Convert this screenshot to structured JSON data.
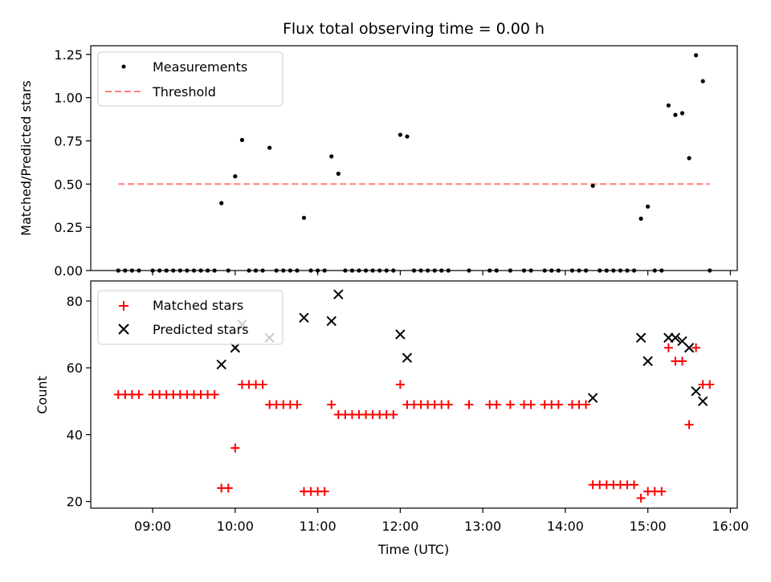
{
  "figure": {
    "title": "Flux total observing time = 0.00 h"
  },
  "chart_data": [
    {
      "type": "scatter",
      "panel": "top",
      "title": "Flux total observing time = 0.00 h",
      "xlabel": "",
      "ylabel": "Matched/Predicted stars",
      "xlim": [
        "08:15",
        "16:05"
      ],
      "ylim": [
        0,
        1.3
      ],
      "y_ticks": [
        "0.00",
        "0.25",
        "0.50",
        "0.75",
        "1.00",
        "1.25"
      ],
      "x_tick_times": [
        "09:00",
        "10:00",
        "11:00",
        "12:00",
        "13:00",
        "14:00",
        "15:00",
        "16:00"
      ],
      "legend_position": "top-left",
      "colors": {
        "measurements": "#000000",
        "threshold": "#ff7f7f"
      },
      "series": [
        {
          "name": "Measurements",
          "style": "dot",
          "points": [
            [
              "08:35",
              0
            ],
            [
              "08:40",
              0
            ],
            [
              "08:45",
              0
            ],
            [
              "08:50",
              0
            ],
            [
              "09:00",
              0
            ],
            [
              "09:05",
              0
            ],
            [
              "09:10",
              0
            ],
            [
              "09:15",
              0
            ],
            [
              "09:20",
              0
            ],
            [
              "09:25",
              0
            ],
            [
              "09:30",
              0
            ],
            [
              "09:35",
              0
            ],
            [
              "09:40",
              0
            ],
            [
              "09:45",
              0
            ],
            [
              "09:50",
              0.39
            ],
            [
              "09:55",
              0
            ],
            [
              "10:00",
              0.545
            ],
            [
              "10:05",
              0.755
            ],
            [
              "10:10",
              0
            ],
            [
              "10:15",
              0
            ],
            [
              "10:20",
              0
            ],
            [
              "10:25",
              0.71
            ],
            [
              "10:30",
              0
            ],
            [
              "10:35",
              0
            ],
            [
              "10:40",
              0
            ],
            [
              "10:45",
              0
            ],
            [
              "10:50",
              0.305
            ],
            [
              "10:55",
              0
            ],
            [
              "11:00",
              0
            ],
            [
              "11:05",
              0
            ],
            [
              "11:10",
              0.66
            ],
            [
              "11:15",
              0.56
            ],
            [
              "11:20",
              0
            ],
            [
              "11:25",
              0
            ],
            [
              "11:30",
              0
            ],
            [
              "11:35",
              0
            ],
            [
              "11:40",
              0
            ],
            [
              "11:45",
              0
            ],
            [
              "11:50",
              0
            ],
            [
              "11:55",
              0
            ],
            [
              "12:00",
              0.785
            ],
            [
              "12:05",
              0.775
            ],
            [
              "12:10",
              0
            ],
            [
              "12:15",
              0
            ],
            [
              "12:20",
              0
            ],
            [
              "12:25",
              0
            ],
            [
              "12:30",
              0
            ],
            [
              "12:35",
              0
            ],
            [
              "12:50",
              0
            ],
            [
              "13:05",
              0
            ],
            [
              "13:10",
              0
            ],
            [
              "13:20",
              0
            ],
            [
              "13:30",
              0
            ],
            [
              "13:35",
              0
            ],
            [
              "13:45",
              0
            ],
            [
              "13:50",
              0
            ],
            [
              "13:55",
              0
            ],
            [
              "14:05",
              0
            ],
            [
              "14:10",
              0
            ],
            [
              "14:15",
              0
            ],
            [
              "14:20",
              0.49
            ],
            [
              "14:25",
              0
            ],
            [
              "14:30",
              0
            ],
            [
              "14:35",
              0
            ],
            [
              "14:40",
              0
            ],
            [
              "14:45",
              0
            ],
            [
              "14:50",
              0
            ],
            [
              "14:55",
              0.3
            ],
            [
              "15:00",
              0.37
            ],
            [
              "15:05",
              0
            ],
            [
              "15:10",
              0
            ],
            [
              "15:15",
              0.955
            ],
            [
              "15:20",
              0.9
            ],
            [
              "15:25",
              0.91
            ],
            [
              "15:30",
              0.65
            ],
            [
              "15:35",
              1.245
            ],
            [
              "15:40",
              1.095
            ],
            [
              "15:45",
              0
            ]
          ]
        },
        {
          "name": "Threshold",
          "style": "dashed-line",
          "points": [
            [
              "08:35",
              0.5
            ],
            [
              "15:45",
              0.5
            ]
          ]
        }
      ]
    },
    {
      "type": "scatter",
      "panel": "bottom",
      "title": "",
      "xlabel": "Time (UTC)",
      "ylabel": "Count",
      "xlim": [
        "08:15",
        "16:05"
      ],
      "ylim": [
        18,
        86
      ],
      "y_ticks": [
        "20",
        "40",
        "60",
        "80"
      ],
      "x_ticks": [
        "09:00",
        "10:00",
        "11:00",
        "12:00",
        "13:00",
        "14:00",
        "15:00",
        "16:00"
      ],
      "legend_position": "top-left",
      "colors": {
        "matched": "#ff0000",
        "predicted": "#000000"
      },
      "series": [
        {
          "name": "Matched stars",
          "marker": "plus",
          "points": [
            [
              "08:35",
              52
            ],
            [
              "08:40",
              52
            ],
            [
              "08:45",
              52
            ],
            [
              "08:50",
              52
            ],
            [
              "09:00",
              52
            ],
            [
              "09:05",
              52
            ],
            [
              "09:10",
              52
            ],
            [
              "09:15",
              52
            ],
            [
              "09:20",
              52
            ],
            [
              "09:25",
              52
            ],
            [
              "09:30",
              52
            ],
            [
              "09:35",
              52
            ],
            [
              "09:40",
              52
            ],
            [
              "09:45",
              52
            ],
            [
              "09:50",
              24
            ],
            [
              "09:55",
              24
            ],
            [
              "10:00",
              36
            ],
            [
              "10:05",
              55
            ],
            [
              "10:10",
              55
            ],
            [
              "10:15",
              55
            ],
            [
              "10:20",
              55
            ],
            [
              "10:25",
              49
            ],
            [
              "10:30",
              49
            ],
            [
              "10:35",
              49
            ],
            [
              "10:40",
              49
            ],
            [
              "10:45",
              49
            ],
            [
              "10:50",
              23
            ],
            [
              "10:55",
              23
            ],
            [
              "11:00",
              23
            ],
            [
              "11:05",
              23
            ],
            [
              "11:10",
              49
            ],
            [
              "11:15",
              46
            ],
            [
              "11:20",
              46
            ],
            [
              "11:25",
              46
            ],
            [
              "11:30",
              46
            ],
            [
              "11:35",
              46
            ],
            [
              "11:40",
              46
            ],
            [
              "11:45",
              46
            ],
            [
              "11:50",
              46
            ],
            [
              "11:55",
              46
            ],
            [
              "12:00",
              55
            ],
            [
              "12:05",
              49
            ],
            [
              "12:10",
              49
            ],
            [
              "12:15",
              49
            ],
            [
              "12:20",
              49
            ],
            [
              "12:25",
              49
            ],
            [
              "12:30",
              49
            ],
            [
              "12:35",
              49
            ],
            [
              "12:50",
              49
            ],
            [
              "13:05",
              49
            ],
            [
              "13:10",
              49
            ],
            [
              "13:20",
              49
            ],
            [
              "13:30",
              49
            ],
            [
              "13:35",
              49
            ],
            [
              "13:45",
              49
            ],
            [
              "13:50",
              49
            ],
            [
              "13:55",
              49
            ],
            [
              "14:05",
              49
            ],
            [
              "14:10",
              49
            ],
            [
              "14:15",
              49
            ],
            [
              "14:20",
              25
            ],
            [
              "14:25",
              25
            ],
            [
              "14:30",
              25
            ],
            [
              "14:35",
              25
            ],
            [
              "14:40",
              25
            ],
            [
              "14:45",
              25
            ],
            [
              "14:50",
              25
            ],
            [
              "14:55",
              21
            ],
            [
              "15:00",
              23
            ],
            [
              "15:05",
              23
            ],
            [
              "15:10",
              23
            ],
            [
              "15:15",
              66
            ],
            [
              "15:20",
              62
            ],
            [
              "15:25",
              62
            ],
            [
              "15:30",
              43
            ],
            [
              "15:35",
              66
            ],
            [
              "15:40",
              55
            ],
            [
              "15:45",
              55
            ]
          ]
        },
        {
          "name": "Predicted stars",
          "marker": "x",
          "points": [
            [
              "09:50",
              61
            ],
            [
              "10:00",
              66
            ],
            [
              "10:05",
              73
            ],
            [
              "10:25",
              69
            ],
            [
              "10:50",
              75
            ],
            [
              "11:10",
              74
            ],
            [
              "11:15",
              82
            ],
            [
              "12:00",
              70
            ],
            [
              "12:05",
              63
            ],
            [
              "14:20",
              51
            ],
            [
              "14:55",
              69
            ],
            [
              "15:00",
              62
            ],
            [
              "15:15",
              69
            ],
            [
              "15:20",
              69
            ],
            [
              "15:25",
              68
            ],
            [
              "15:30",
              66
            ],
            [
              "15:35",
              53
            ],
            [
              "15:40",
              50
            ]
          ]
        }
      ]
    }
  ]
}
